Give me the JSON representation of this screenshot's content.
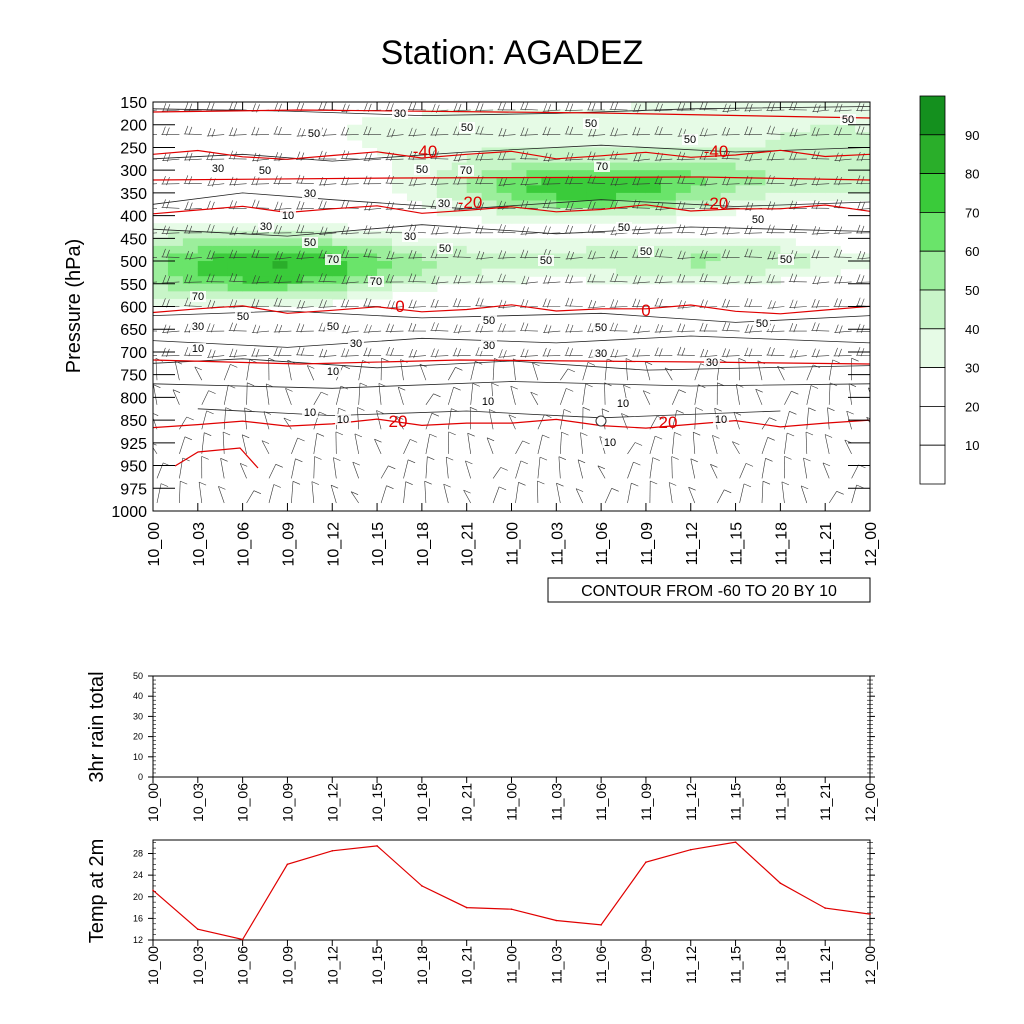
{
  "title": "Station: AGADEZ",
  "cross_section": {
    "ylabel": "Pressure (hPa)",
    "info_box": "CONTOUR FROM -60 TO 20 BY 10"
  },
  "rain_panel": {
    "ylabel": "3hr rain total"
  },
  "temp_panel": {
    "ylabel": "Temp at 2m"
  },
  "colors": {
    "temperature_contour": "#e00000",
    "humidity_fill_low": "#e6fbe6",
    "humidity_fill_high": "#14901e"
  },
  "chart_data": [
    {
      "type": "heatmap",
      "title": "Station: AGADEZ",
      "xlabel": "",
      "ylabel": "Pressure (hPa)",
      "x_ticks": [
        "10_00",
        "10_03",
        "10_06",
        "10_09",
        "10_12",
        "10_15",
        "10_18",
        "10_21",
        "11_00",
        "11_03",
        "11_06",
        "11_09",
        "11_12",
        "11_15",
        "11_18",
        "11_21",
        "12_00"
      ],
      "y_ticks": [
        150,
        200,
        250,
        300,
        350,
        400,
        450,
        500,
        550,
        600,
        650,
        700,
        750,
        800,
        850,
        925,
        950,
        975,
        1000
      ],
      "ylim": [
        1000,
        150
      ],
      "fill_levels": [
        10,
        20,
        30,
        40,
        50,
        60,
        70,
        80,
        90
      ],
      "fill_colors": [
        "#ffffff",
        "#ffffff",
        "#ffffff",
        "#e6fbe6",
        "#c8f5c8",
        "#9cee9c",
        "#6ae46a",
        "#3acb3a",
        "#2aae2a",
        "#14901e"
      ],
      "humidity_contour_labels": [
        10,
        30,
        50,
        70
      ],
      "temperature_contours": [
        {
          "value": -40,
          "label": "-40",
          "pressure": 265
        },
        {
          "value": -20,
          "label": "-20",
          "pressure": 385
        },
        {
          "value": 0,
          "label": "0",
          "pressure": 605
        },
        {
          "value": 20,
          "label": "20",
          "pressure": 860
        }
      ],
      "contour_info": "CONTOUR FROM -60 TO 20 BY 10"
    },
    {
      "type": "bar",
      "ylabel": "3hr rain total",
      "categories": [
        "10_00",
        "10_03",
        "10_06",
        "10_09",
        "10_12",
        "10_15",
        "10_18",
        "10_21",
        "11_00",
        "11_03",
        "11_06",
        "11_09",
        "11_12",
        "11_15",
        "11_18",
        "11_21",
        "12_00"
      ],
      "values": [
        0,
        0,
        0,
        0,
        0,
        0,
        0,
        0,
        0,
        0,
        0,
        0,
        0,
        0,
        0,
        0,
        0
      ],
      "ylim": [
        0,
        50
      ],
      "y_ticks": [
        0,
        10,
        20,
        30,
        40,
        50
      ]
    },
    {
      "type": "line",
      "ylabel": "Temp at 2m",
      "x": [
        "10_00",
        "10_03",
        "10_06",
        "10_09",
        "10_12",
        "10_15",
        "10_18",
        "10_21",
        "11_00",
        "11_03",
        "11_06",
        "11_09",
        "11_12",
        "11_15",
        "11_18",
        "11_21",
        "12_00"
      ],
      "values": [
        21.2,
        14.0,
        12.1,
        26.0,
        28.5,
        29.4,
        22.0,
        18.0,
        17.7,
        15.6,
        14.8,
        26.4,
        28.7,
        30.1,
        22.5,
        17.9,
        16.8
      ],
      "ylim": [
        12,
        30.5
      ],
      "y_ticks": [
        12,
        16,
        20,
        24,
        28
      ]
    }
  ]
}
